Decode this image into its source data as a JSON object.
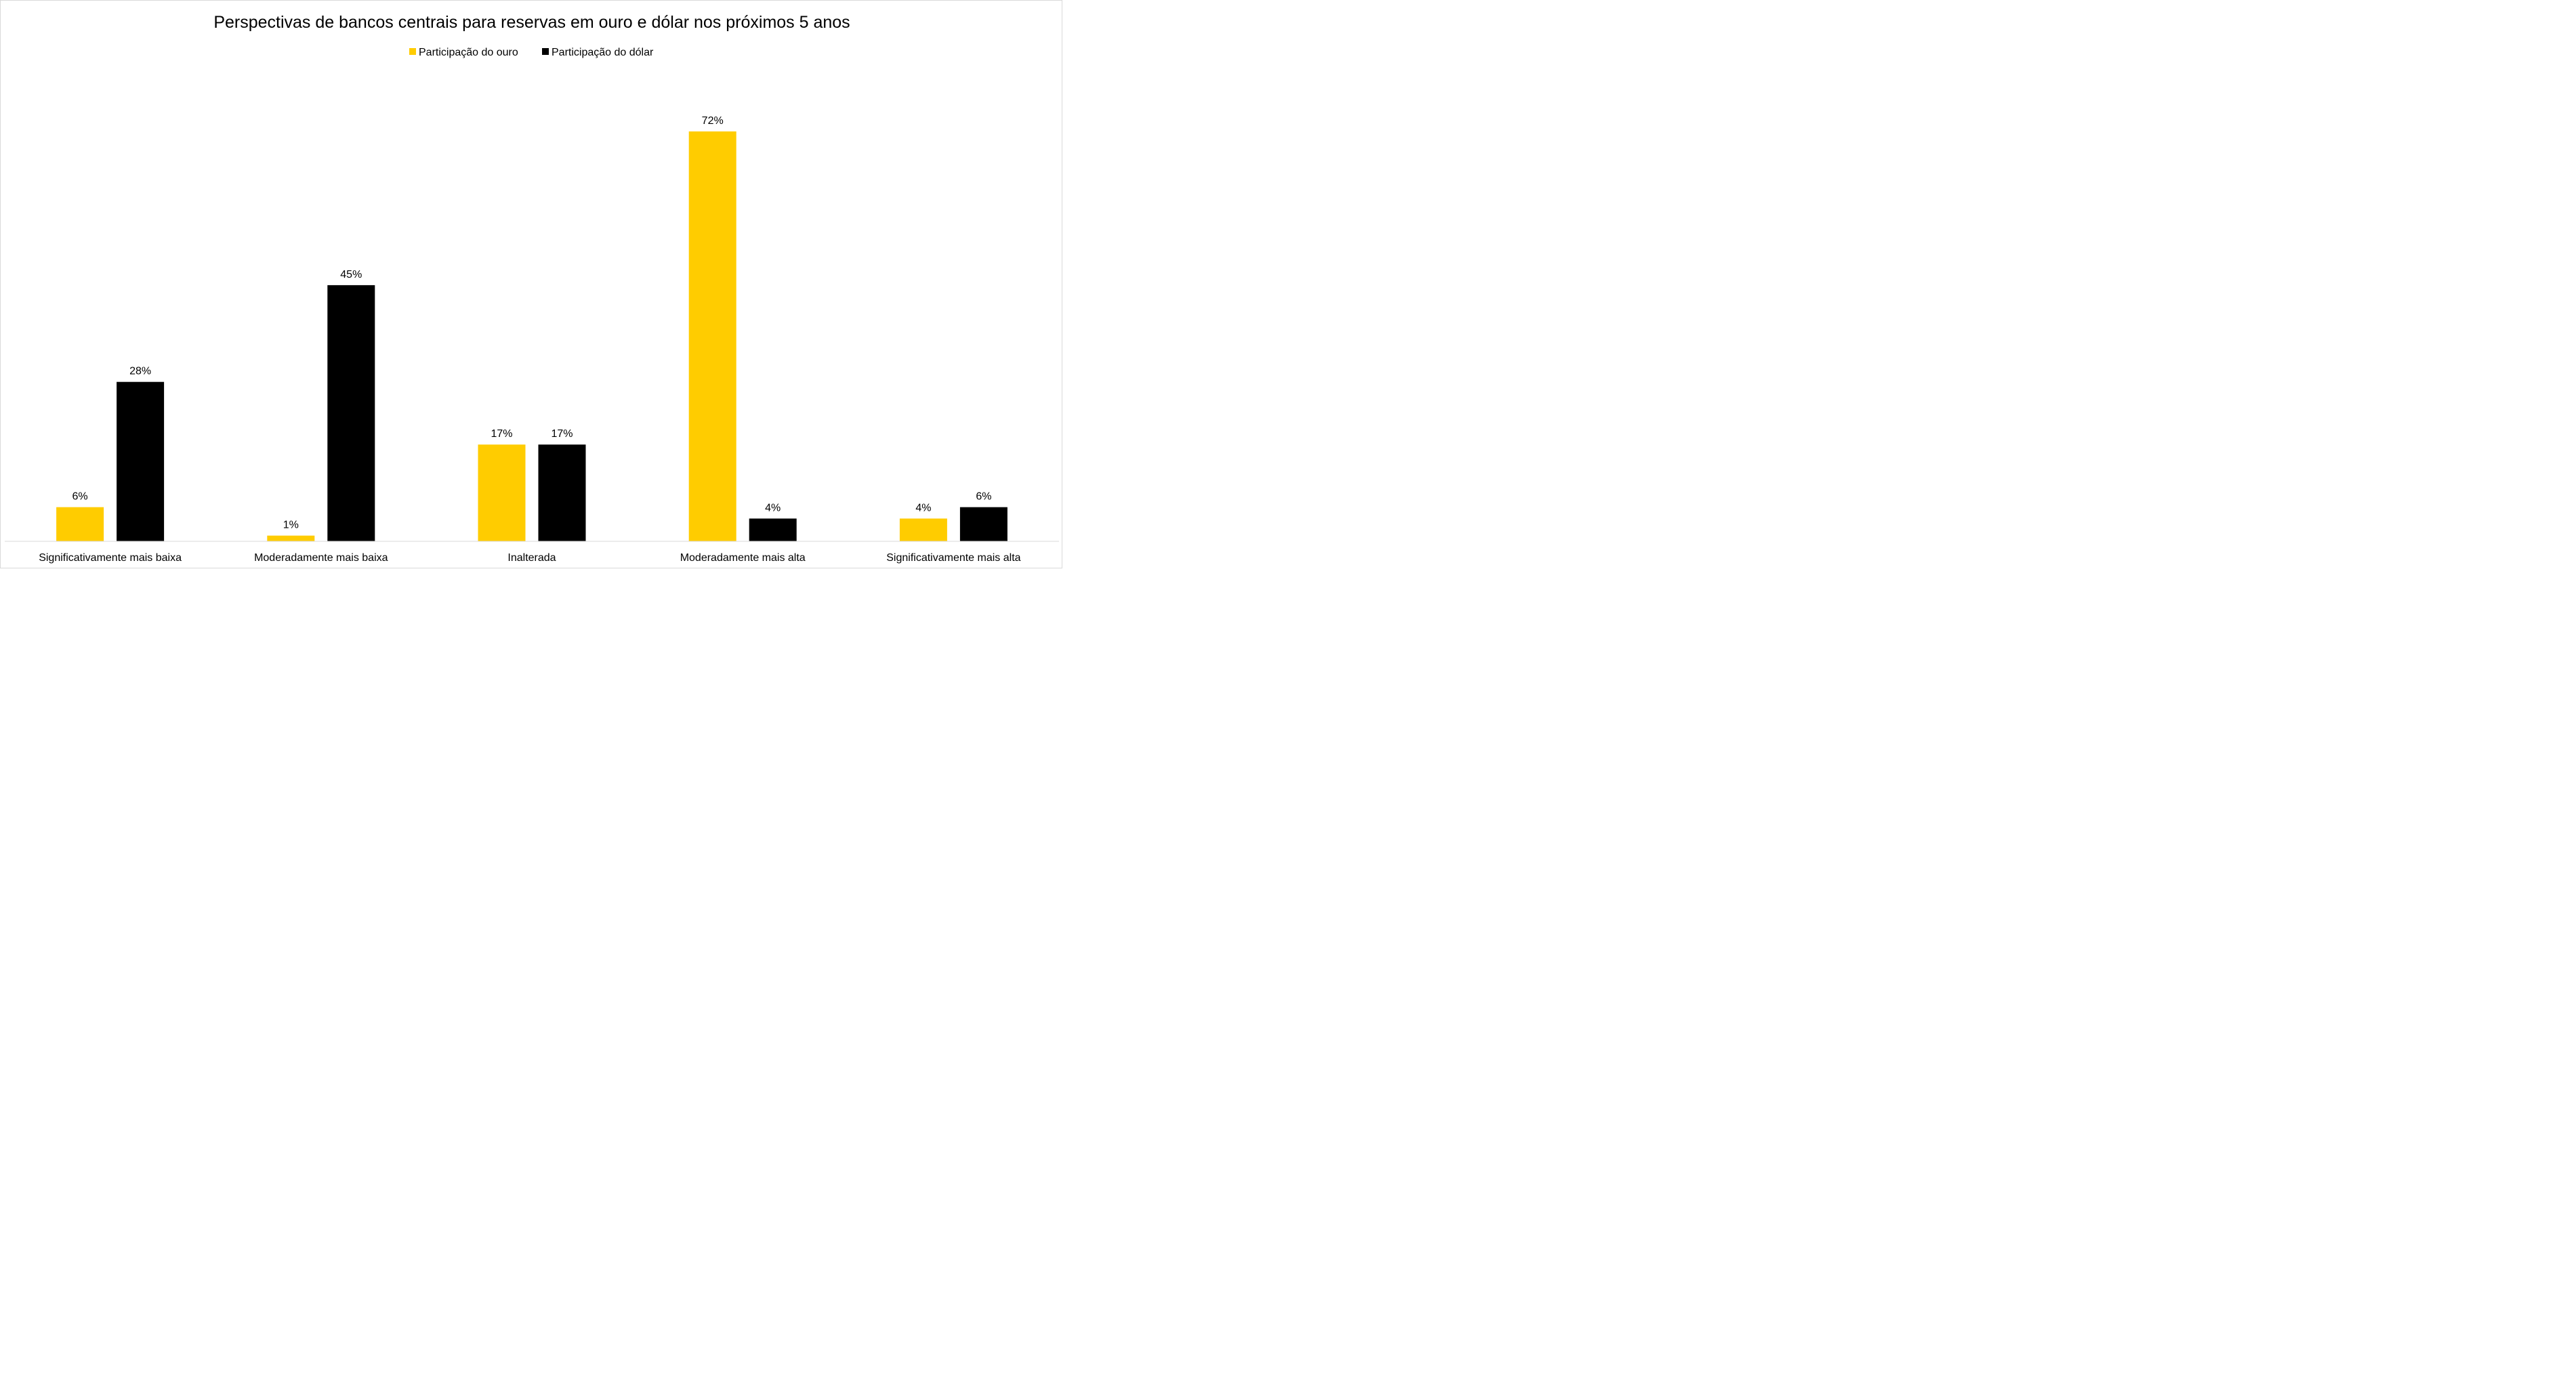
{
  "chart_data": {
    "type": "bar",
    "title": "Perspectivas de bancos centrais para reservas em ouro e dólar nos próximos 5 anos",
    "xlabel": "",
    "ylabel": "",
    "ylim": [
      0,
      80
    ],
    "grid": false,
    "legend_position": "top",
    "categories": [
      "Significativamente mais baixa",
      "Moderadamente mais baixa",
      "Inalterada",
      "Moderadamente mais alta",
      "Significativamente mais alta"
    ],
    "series": [
      {
        "name": "Participação do ouro",
        "color": "#FFCC00",
        "values": [
          6,
          1,
          17,
          72,
          4
        ],
        "labels": [
          "6%",
          "1%",
          "17%",
          "72%",
          "4%"
        ]
      },
      {
        "name": "Participação do dólar",
        "color": "#000000",
        "values": [
          28,
          45,
          17,
          4,
          6
        ],
        "labels": [
          "28%",
          "45%",
          "17%",
          "4%",
          "6%"
        ]
      }
    ]
  }
}
